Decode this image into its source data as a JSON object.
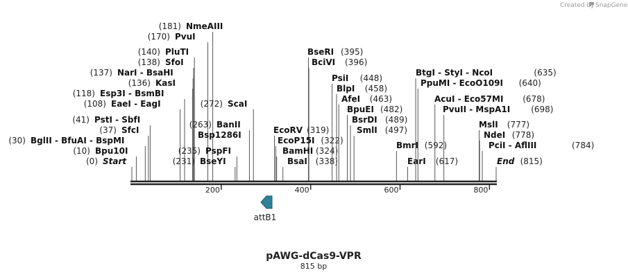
{
  "credit": {
    "text": "Created by",
    "brand": "SnapGene"
  },
  "plasmid": {
    "name": "pAWG-dCas9-VPR",
    "length_label": "815 bp",
    "length": 815
  },
  "scale": {
    "ticks": [
      {
        "value": 200,
        "label": "200"
      },
      {
        "value": 400,
        "label": "400"
      },
      {
        "value": 600,
        "label": "600"
      },
      {
        "value": 800,
        "label": "800"
      }
    ]
  },
  "feature": {
    "name": "attB1",
    "color": "#2f8097",
    "icon": "arrow-left-icon"
  },
  "labels": [
    {
      "num": "(181)",
      "name": "NmeAIII",
      "pos": 181
    },
    {
      "num": "(170)",
      "name": "PvuI",
      "pos": 170
    },
    {
      "num": "(140)",
      "name": "PluTI",
      "pos": 140
    },
    {
      "num": "(138)",
      "name": "SfoI",
      "pos": 138
    },
    {
      "num": "(137)",
      "name": "NarI  -  BsaHI",
      "pos": 137
    },
    {
      "num": "(136)",
      "name": "KasI",
      "pos": 136
    },
    {
      "num": "(118)",
      "name": "Esp3I  -  BsmBI",
      "pos": 118
    },
    {
      "num": "(108)",
      "name": "EaeI  -  EagI",
      "pos": 108
    },
    {
      "num": "(41)",
      "name": "PstI  -  SbfI",
      "pos": 41
    },
    {
      "num": "(37)",
      "name": "SfcI",
      "pos": 37
    },
    {
      "num": "(30)",
      "name": "BglII  -  BfuAI  -  BspMI",
      "pos": 30
    },
    {
      "num": "(10)",
      "name": "Bpu10I",
      "pos": 10
    },
    {
      "num": "(0)",
      "name": "Start",
      "pos": 0,
      "italic": true
    },
    {
      "num": "(272)",
      "name": "ScaI",
      "pos": 272
    },
    {
      "num": "(263)",
      "name": "BanII",
      "pos": 263
    },
    {
      "num": "",
      "name": "Bsp1286I",
      "pos": 263
    },
    {
      "num": "(235)",
      "name": "PspFI",
      "pos": 235
    },
    {
      "num": "(231)",
      "name": "BseYI",
      "pos": 231
    },
    {
      "num": "(395)",
      "name": "BseRI",
      "pos": 395
    },
    {
      "num": "(396)",
      "name": "BciVI",
      "pos": 396
    },
    {
      "num": "(319)",
      "name": "EcoRV",
      "pos": 319
    },
    {
      "num": "(322)",
      "name": "EcoP15I",
      "pos": 322
    },
    {
      "num": "(324)",
      "name": "BamHI",
      "pos": 324
    },
    {
      "num": "(338)",
      "name": "BsaI",
      "pos": 338
    },
    {
      "num": "(448)",
      "name": "PsiI",
      "pos": 448
    },
    {
      "num": "(458)",
      "name": "BlpI",
      "pos": 458
    },
    {
      "num": "(463)",
      "name": "AfeI",
      "pos": 463
    },
    {
      "num": "(482)",
      "name": "BpuEI",
      "pos": 482
    },
    {
      "num": "(489)",
      "name": "BsrDI",
      "pos": 489
    },
    {
      "num": "(497)",
      "name": "SmlI",
      "pos": 497
    },
    {
      "num": "(592)",
      "name": "BmrI",
      "pos": 592
    },
    {
      "num": "(617)",
      "name": "EarI",
      "pos": 617
    },
    {
      "num": "(635)",
      "name": "BtgI  -  StyI  -  NcoI",
      "pos": 635
    },
    {
      "num": "(640)",
      "name": "PpuMI  -  EcoO109I",
      "pos": 640
    },
    {
      "num": "(678)",
      "name": "AcuI  -  Eco57MI",
      "pos": 678
    },
    {
      "num": "(698)",
      "name": "PvuII  -  MspA1I",
      "pos": 698
    },
    {
      "num": "(777)",
      "name": "MslI",
      "pos": 777
    },
    {
      "num": "(778)",
      "name": "NdeI",
      "pos": 778
    },
    {
      "num": "(784)",
      "name": "PciI  -  AflIII",
      "pos": 784
    },
    {
      "num": "(815)",
      "name": "End",
      "pos": 815,
      "italic": true
    }
  ]
}
